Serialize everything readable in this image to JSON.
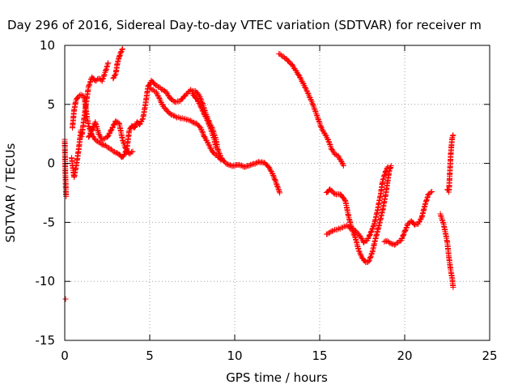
{
  "chart_data": {
    "type": "scatter",
    "title": "Day 296 of 2016, Sidereal Day-to-day VTEC variation (SDTVAR) for receiver m",
    "xlabel": "GPS time / hours",
    "ylabel": "SDTVAR / TECUs",
    "xlim": [
      0,
      25
    ],
    "ylim": [
      -15,
      10
    ],
    "x_ticks": [
      0,
      5,
      10,
      15,
      20,
      25
    ],
    "y_ticks": [
      -15,
      -10,
      -5,
      0,
      5,
      10
    ],
    "x_tick_labels": [
      "0",
      "5",
      "10",
      "15",
      "20",
      "25"
    ],
    "y_tick_labels": [
      "-15",
      "-10",
      "-5",
      "0",
      "5",
      "10"
    ],
    "grid": true,
    "marker": "+",
    "series": [
      {
        "name": "SDTVAR",
        "color": "#ff0000",
        "segments": [
          [
            [
              0.0,
              2.0
            ],
            [
              0.02,
              0.5
            ],
            [
              0.04,
              -1.0
            ],
            [
              0.06,
              -2.0
            ],
            [
              0.08,
              -2.8
            ]
          ],
          [
            [
              0.05,
              -11.5
            ]
          ],
          [
            [
              0.4,
              0.5
            ],
            [
              0.55,
              -1.2
            ],
            [
              0.7,
              0.0
            ],
            [
              0.85,
              1.5
            ],
            [
              0.95,
              2.8
            ]
          ],
          [
            [
              0.45,
              3.0
            ],
            [
              0.55,
              4.5
            ],
            [
              0.65,
              5.3
            ],
            [
              0.8,
              5.7
            ],
            [
              0.95,
              5.8
            ],
            [
              1.1,
              5.7
            ],
            [
              1.2,
              5.2
            ],
            [
              1.3,
              4.0
            ],
            [
              1.4,
              3.2
            ],
            [
              1.5,
              2.8
            ],
            [
              1.6,
              2.4
            ],
            [
              1.8,
              2.0
            ],
            [
              2.0,
              1.8
            ],
            [
              2.2,
              1.6
            ],
            [
              2.4,
              1.5
            ],
            [
              2.6,
              1.3
            ],
            [
              2.8,
              1.1
            ],
            [
              3.0,
              0.9
            ],
            [
              3.2,
              0.8
            ],
            [
              3.35,
              0.5
            ],
            [
              3.5,
              0.7
            ],
            [
              3.65,
              1.2
            ],
            [
              3.8,
              2.8
            ],
            [
              3.95,
              3.2
            ],
            [
              4.1,
              3.0
            ],
            [
              4.25,
              3.5
            ],
            [
              4.4,
              3.3
            ],
            [
              4.6,
              3.8
            ],
            [
              4.75,
              5.0
            ],
            [
              4.9,
              6.5
            ],
            [
              5.1,
              7.0
            ],
            [
              5.3,
              6.7
            ],
            [
              5.5,
              6.5
            ],
            [
              5.7,
              6.3
            ],
            [
              6.0,
              6.0
            ],
            [
              6.2,
              5.5
            ],
            [
              6.5,
              5.2
            ],
            [
              6.8,
              5.3
            ],
            [
              7.1,
              5.8
            ],
            [
              7.4,
              6.2
            ],
            [
              7.7,
              6.1
            ],
            [
              7.9,
              5.8
            ],
            [
              8.1,
              5.1
            ],
            [
              8.3,
              4.2
            ],
            [
              8.5,
              3.5
            ],
            [
              8.7,
              2.9
            ],
            [
              8.9,
              2.0
            ],
            [
              9.0,
              1.2
            ],
            [
              9.2,
              0.5
            ],
            [
              9.4,
              0.1
            ],
            [
              9.6,
              -0.1
            ],
            [
              9.8,
              -0.2
            ],
            [
              10.0,
              -0.2
            ],
            [
              10.2,
              -0.1
            ],
            [
              10.4,
              -0.2
            ],
            [
              10.6,
              -0.3
            ],
            [
              10.8,
              -0.2
            ],
            [
              11.0,
              -0.1
            ],
            [
              11.2,
              0.0
            ],
            [
              11.4,
              0.1
            ],
            [
              11.6,
              0.1
            ],
            [
              11.8,
              0.0
            ],
            [
              12.0,
              -0.3
            ],
            [
              12.2,
              -0.8
            ],
            [
              12.4,
              -1.5
            ],
            [
              12.55,
              -2.1
            ],
            [
              12.65,
              -2.5
            ]
          ],
          [
            [
              1.0,
              2.3
            ],
            [
              1.2,
              4.5
            ],
            [
              1.4,
              6.5
            ],
            [
              1.6,
              7.3
            ],
            [
              1.8,
              7.0
            ],
            [
              2.0,
              7.2
            ],
            [
              2.2,
              7.0
            ],
            [
              2.4,
              7.8
            ],
            [
              2.55,
              8.5
            ]
          ],
          [
            [
              1.4,
              2.2
            ],
            [
              1.6,
              2.8
            ],
            [
              1.8,
              3.5
            ],
            [
              2.0,
              2.5
            ],
            [
              2.2,
              2.0
            ],
            [
              2.5,
              2.2
            ],
            [
              2.8,
              3.0
            ],
            [
              3.0,
              3.6
            ],
            [
              3.2,
              3.4
            ],
            [
              3.4,
              2.0
            ],
            [
              3.6,
              1.2
            ],
            [
              3.8,
              0.8
            ],
            [
              4.0,
              1.0
            ]
          ],
          [
            [
              2.85,
              7.2
            ],
            [
              3.0,
              7.6
            ],
            [
              3.1,
              8.5
            ],
            [
              3.2,
              9.0
            ],
            [
              3.3,
              9.4
            ],
            [
              3.4,
              9.7
            ]
          ],
          [
            [
              5.0,
              6.4
            ],
            [
              5.4,
              6.0
            ],
            [
              5.8,
              4.8
            ],
            [
              6.2,
              4.2
            ],
            [
              6.6,
              3.9
            ],
            [
              7.0,
              3.8
            ],
            [
              7.4,
              3.6
            ],
            [
              7.8,
              3.3
            ],
            [
              8.0,
              3.0
            ],
            [
              8.2,
              2.3
            ],
            [
              8.4,
              1.8
            ],
            [
              8.6,
              1.2
            ],
            [
              8.8,
              0.8
            ],
            [
              9.0,
              0.6
            ],
            [
              9.2,
              0.3
            ]
          ],
          [
            [
              7.5,
              5.9
            ],
            [
              7.8,
              5.4
            ],
            [
              8.0,
              4.8
            ],
            [
              8.2,
              4.2
            ],
            [
              8.4,
              3.6
            ],
            [
              8.6,
              2.9
            ],
            [
              8.8,
              2.0
            ],
            [
              8.9,
              1.3
            ]
          ],
          [
            [
              12.6,
              9.3
            ],
            [
              13.0,
              8.9
            ],
            [
              13.4,
              8.3
            ],
            [
              13.8,
              7.4
            ],
            [
              14.2,
              6.3
            ],
            [
              14.6,
              5.0
            ],
            [
              14.9,
              3.8
            ],
            [
              15.1,
              3.0
            ],
            [
              15.3,
              2.5
            ],
            [
              15.5,
              2.0
            ],
            [
              15.7,
              1.2
            ],
            [
              15.9,
              0.8
            ],
            [
              16.1,
              0.6
            ],
            [
              16.3,
              0.1
            ],
            [
              16.4,
              -0.2
            ]
          ],
          [
            [
              15.4,
              -2.5
            ],
            [
              15.6,
              -2.2
            ],
            [
              15.9,
              -2.6
            ],
            [
              16.2,
              -2.6
            ],
            [
              16.5,
              -3.1
            ],
            [
              16.7,
              -4.5
            ],
            [
              16.9,
              -5.6
            ],
            [
              17.1,
              -6.3
            ],
            [
              17.3,
              -7.4
            ],
            [
              17.5,
              -8.0
            ],
            [
              17.7,
              -8.4
            ],
            [
              17.9,
              -8.3
            ],
            [
              18.1,
              -7.5
            ],
            [
              18.3,
              -6.3
            ],
            [
              18.5,
              -5.2
            ],
            [
              18.7,
              -4.0
            ],
            [
              18.9,
              -2.5
            ],
            [
              19.0,
              -1.5
            ],
            [
              19.1,
              -0.6
            ],
            [
              19.2,
              -0.2
            ]
          ],
          [
            [
              15.4,
              -6.0
            ],
            [
              15.8,
              -5.7
            ],
            [
              16.2,
              -5.5
            ],
            [
              16.6,
              -5.3
            ],
            [
              17.0,
              -5.6
            ],
            [
              17.3,
              -6.0
            ],
            [
              17.6,
              -6.7
            ],
            [
              17.8,
              -6.5
            ],
            [
              18.0,
              -5.9
            ],
            [
              18.2,
              -5.2
            ],
            [
              18.4,
              -4.0
            ],
            [
              18.6,
              -2.5
            ],
            [
              18.7,
              -1.5
            ],
            [
              18.85,
              -0.8
            ],
            [
              19.0,
              -0.3
            ]
          ],
          [
            [
              18.8,
              -6.6
            ],
            [
              19.0,
              -6.6
            ],
            [
              19.2,
              -6.8
            ],
            [
              19.4,
              -6.9
            ],
            [
              19.6,
              -6.7
            ],
            [
              19.8,
              -6.5
            ],
            [
              20.0,
              -5.8
            ],
            [
              20.2,
              -5.1
            ],
            [
              20.4,
              -4.9
            ],
            [
              20.6,
              -5.2
            ],
            [
              20.8,
              -5.1
            ],
            [
              21.0,
              -4.6
            ],
            [
              21.2,
              -3.5
            ],
            [
              21.4,
              -2.6
            ],
            [
              21.6,
              -2.4
            ]
          ],
          [
            [
              22.1,
              -4.3
            ],
            [
              22.3,
              -5.2
            ],
            [
              22.5,
              -6.6
            ],
            [
              22.6,
              -7.9
            ],
            [
              22.7,
              -9.0
            ],
            [
              22.8,
              -9.8
            ],
            [
              22.85,
              -10.5
            ]
          ],
          [
            [
              22.5,
              -2.2
            ],
            [
              22.6,
              -2.4
            ],
            [
              22.65,
              -1.0
            ],
            [
              22.7,
              0.5
            ],
            [
              22.75,
              1.5
            ],
            [
              22.8,
              2.2
            ],
            [
              22.85,
              2.4
            ]
          ]
        ]
      }
    ]
  }
}
